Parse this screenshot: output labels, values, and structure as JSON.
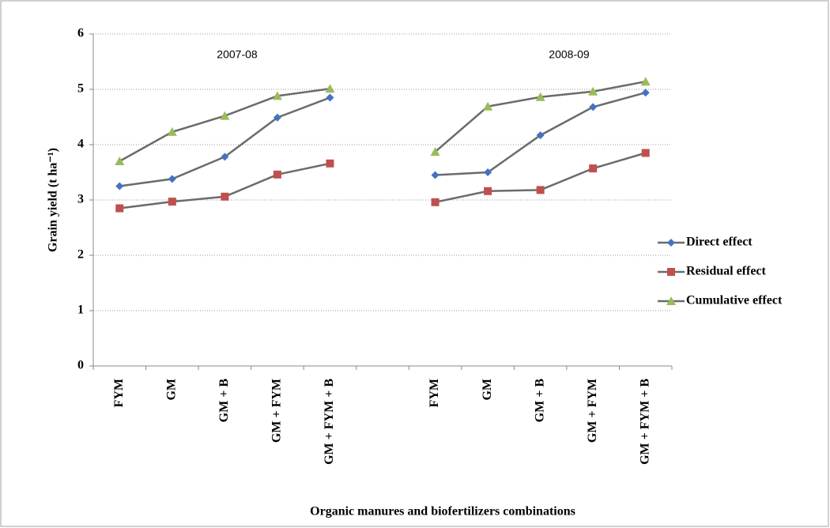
{
  "chart_data": {
    "type": "line",
    "y_label": "Grain yield (t ha⁻¹)",
    "x_label": "Organic manures and biofertilizers combinations",
    "annotations": [
      "2007-08",
      "2008-09"
    ],
    "categories": [
      "FYM",
      "GM",
      "GM + B",
      "GM + FYM",
      "GM + FYM + B",
      null,
      "FYM",
      "GM",
      "GM + B",
      "GM + FYM",
      "GM + FYM + B"
    ],
    "series": [
      {
        "name": "Direct effect",
        "color": "#4472c4",
        "marker": "diamond",
        "values": [
          3.25,
          3.38,
          3.78,
          4.49,
          4.85,
          null,
          3.45,
          3.5,
          4.17,
          4.68,
          4.94
        ]
      },
      {
        "name": "Residual effect",
        "color": "#c0504d",
        "marker": "square",
        "values": [
          2.85,
          2.97,
          3.06,
          3.46,
          3.66,
          null,
          2.96,
          3.16,
          3.18,
          3.57,
          3.85
        ]
      },
      {
        "name": "Cumulative effect",
        "color": "#9bbb59",
        "marker": "triangle",
        "values": [
          3.7,
          4.23,
          4.52,
          4.88,
          5.01,
          null,
          3.87,
          4.69,
          4.86,
          4.96,
          5.14
        ]
      }
    ],
    "line_color": "#6b6b6b",
    "ylim": [
      0,
      6
    ],
    "yticks": [
      0,
      1,
      2,
      3,
      4,
      5,
      6
    ],
    "grid": true,
    "legend": "right"
  }
}
